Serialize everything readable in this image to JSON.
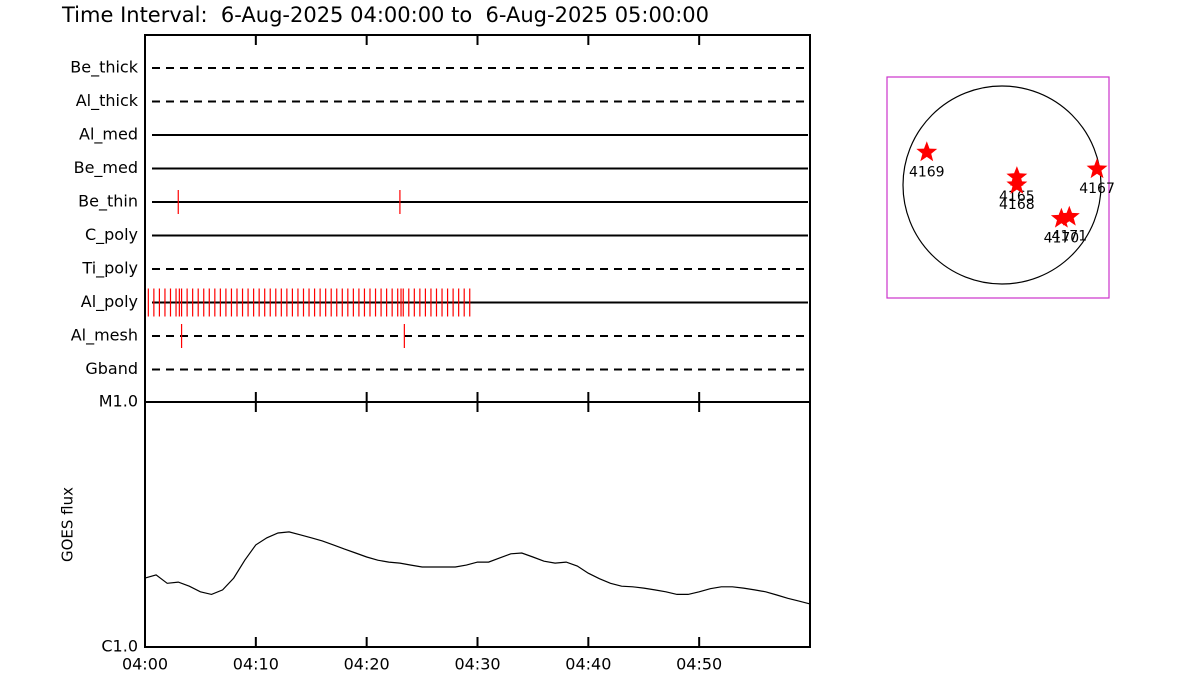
{
  "chart_data": [
    {
      "type": "timeline",
      "title": "Time Interval:  6-Aug-2025 04:00:00 to  6-Aug-2025 05:00:00",
      "categories": [
        "Be_thick",
        "Al_thick",
        "Al_med",
        "Be_med",
        "Be_thin",
        "C_poly",
        "Ti_poly",
        "Al_poly",
        "Al_mesh",
        "Gband"
      ],
      "line_styles": [
        "dashed",
        "dashed",
        "solid",
        "solid",
        "solid",
        "solid",
        "dashed",
        "solid",
        "dashed",
        "dashed"
      ],
      "events": [
        [],
        [],
        [],
        [],
        [
          3.0,
          23.0
        ],
        [],
        [],
        [
          0.3,
          0.8,
          1.3,
          1.8,
          2.3,
          2.8,
          3.1,
          3.3,
          3.8,
          4.3,
          4.8,
          5.3,
          5.8,
          6.3,
          6.8,
          7.3,
          7.8,
          8.3,
          8.8,
          9.3,
          9.8,
          10.3,
          10.8,
          11.3,
          11.8,
          12.3,
          12.8,
          13.3,
          13.8,
          14.3,
          14.8,
          15.3,
          15.8,
          16.3,
          16.8,
          17.3,
          17.8,
          18.3,
          18.8,
          19.3,
          19.8,
          20.3,
          20.8,
          21.3,
          21.8,
          22.3,
          22.8,
          23.1,
          23.3,
          23.8,
          24.3,
          24.8,
          25.3,
          25.8,
          26.3,
          26.8,
          27.3,
          27.8,
          28.3,
          28.8,
          29.3
        ],
        [
          3.3,
          23.4
        ],
        []
      ],
      "color": "#ff0000",
      "xlim": [
        0,
        60
      ],
      "xticks": [
        0,
        10,
        20,
        30,
        40,
        50
      ]
    },
    {
      "type": "line",
      "y_label": "GOES flux",
      "x": [
        0,
        1,
        2,
        3,
        4,
        5,
        6,
        7,
        8,
        9,
        10,
        11,
        12,
        13,
        14,
        15,
        16,
        17,
        18,
        19,
        20,
        21,
        22,
        23,
        24,
        25,
        26,
        27,
        28,
        29,
        30,
        31,
        32,
        33,
        34,
        35,
        36,
        37,
        38,
        39,
        40,
        41,
        42,
        43,
        44,
        45,
        46,
        47,
        48,
        49,
        50,
        51,
        52,
        53,
        54,
        55,
        56,
        57,
        58,
        59,
        60
      ],
      "values": [
        1.91e-06,
        1.97e-06,
        1.82e-06,
        1.84e-06,
        1.77e-06,
        1.68e-06,
        1.64e-06,
        1.71e-06,
        1.91e-06,
        2.26e-06,
        2.61e-06,
        2.79e-06,
        2.92e-06,
        2.95e-06,
        2.87e-06,
        2.79e-06,
        2.71e-06,
        2.61e-06,
        2.51e-06,
        2.42e-06,
        2.33e-06,
        2.26e-06,
        2.22e-06,
        2.2e-06,
        2.16e-06,
        2.12e-06,
        2.12e-06,
        2.12e-06,
        2.12e-06,
        2.16e-06,
        2.22e-06,
        2.22e-06,
        2.31e-06,
        2.4e-06,
        2.42e-06,
        2.33e-06,
        2.24e-06,
        2.2e-06,
        2.22e-06,
        2.14e-06,
        2e-06,
        1.9e-06,
        1.82e-06,
        1.77e-06,
        1.76e-06,
        1.74e-06,
        1.71e-06,
        1.68e-06,
        1.64e-06,
        1.64e-06,
        1.68e-06,
        1.73e-06,
        1.76e-06,
        1.76e-06,
        1.74e-06,
        1.71e-06,
        1.68e-06,
        1.63e-06,
        1.58e-06,
        1.54e-06,
        1.5e-06
      ],
      "color": "#000000",
      "log_scale": true,
      "ylim": [
        1e-06,
        1e-05
      ],
      "yticks": [
        {
          "value": 1e-06,
          "label": "C1.0"
        },
        {
          "value": 1e-05,
          "label": "M1.0"
        }
      ],
      "xlim": [
        0,
        60
      ],
      "xticks": [
        {
          "value": 0,
          "label": "04:00"
        },
        {
          "value": 10,
          "label": "04:10"
        },
        {
          "value": 20,
          "label": "04:20"
        },
        {
          "value": 30,
          "label": "04:30"
        },
        {
          "value": 40,
          "label": "04:40"
        },
        {
          "value": 50,
          "label": "04:50"
        }
      ]
    },
    {
      "type": "scatter",
      "labels": [
        "4169",
        "4165",
        "4168",
        "4167",
        "4170",
        "4171"
      ],
      "x": [
        -0.76,
        0.15,
        0.15,
        0.96,
        0.6,
        0.68
      ],
      "values": [
        0.33,
        0.08,
        0.0,
        0.16,
        -0.34,
        -0.32
      ],
      "color": "#ff0000",
      "frame_color": "#cc33cc"
    }
  ]
}
